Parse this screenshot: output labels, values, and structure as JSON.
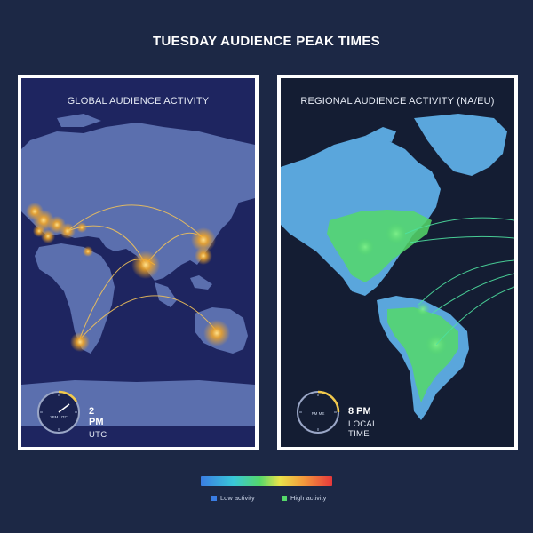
{
  "title": "TUESDAY AUDIENCE PEAK TIMES",
  "panels": {
    "global": {
      "title": "GLOBAL AUDIENCE ACTIVITY",
      "clock_face_label": "2PM UTC",
      "time": "2 PM",
      "zone": "UTC"
    },
    "regional": {
      "title": "REGIONAL AUDIENCE ACTIVITY (NA/EU)",
      "clock_face_label": "PM ME",
      "time": "8 PM",
      "zone": "LOCAL TIME"
    }
  },
  "legend": {
    "low_label": "Low activity",
    "high_label": "High activity",
    "low_color": "#3a7de3",
    "high_color": "#55d86a",
    "gradient": [
      "#3a7de3",
      "#39c8d8",
      "#55d86a",
      "#e9e34a",
      "#f39a3c",
      "#e6383b"
    ]
  },
  "colors": {
    "background": "#1c2845",
    "land_global": "#5b6fae",
    "land_regional": "#5aa6dc",
    "hotspot": "#f5a623",
    "arc_global": "#f0c15a",
    "arc_regional": "#4ee0a0",
    "clock_accent": "#f2c94c"
  }
}
